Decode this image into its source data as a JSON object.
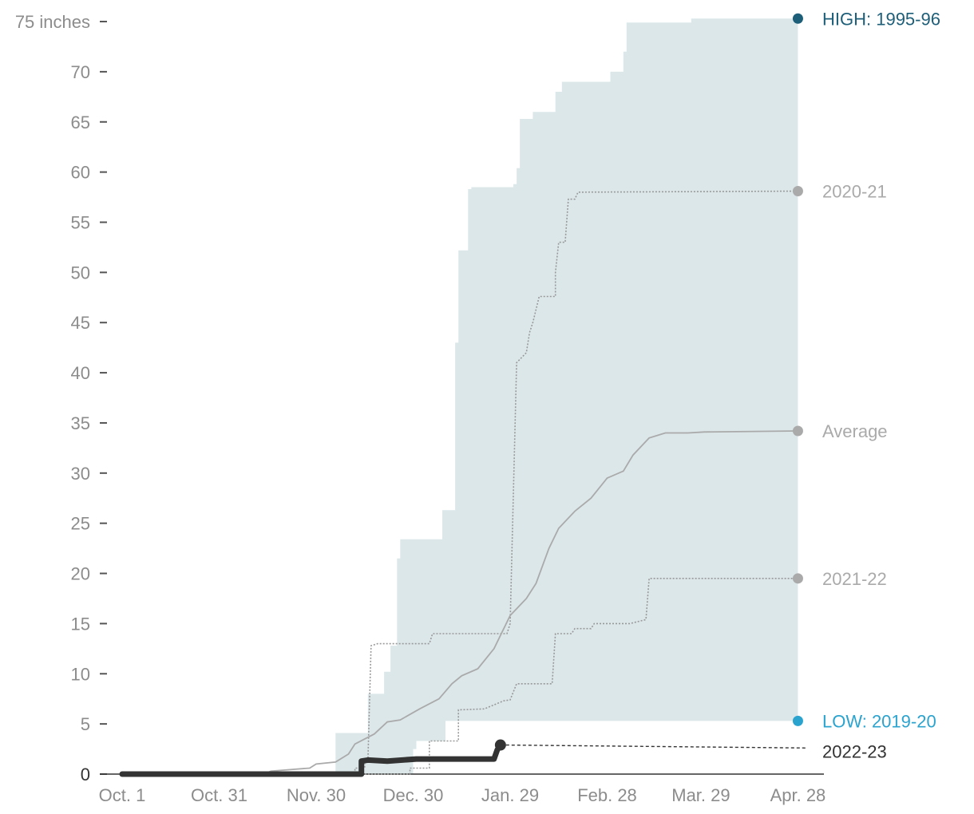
{
  "chart_data": {
    "type": "area",
    "y_unit_label": "75 inches",
    "ylim": [
      0,
      75
    ],
    "yticks": [
      0,
      5,
      10,
      15,
      20,
      25,
      30,
      35,
      40,
      45,
      50,
      55,
      60,
      65,
      70,
      75
    ],
    "x_domain_days": [
      0,
      212
    ],
    "xticks": [
      {
        "day": 0,
        "label": "Oct. 1"
      },
      {
        "day": 30,
        "label": "Oct. 31"
      },
      {
        "day": 60,
        "label": "Nov. 30"
      },
      {
        "day": 90,
        "label": "Dec. 30"
      },
      {
        "day": 120,
        "label": "Jan. 29"
      },
      {
        "day": 150,
        "label": "Feb. 28"
      },
      {
        "day": 179,
        "label": "Mar. 29"
      },
      {
        "day": 209,
        "label": "Apr. 28"
      }
    ],
    "colors": {
      "range": "#dce7ea",
      "high": "#1d5e79",
      "low": "#2ba3cf",
      "gray": "#aaaaaa",
      "current": "#333333"
    },
    "range": {
      "upper": [
        [
          58,
          0
        ],
        [
          66,
          0
        ],
        [
          66,
          4.1
        ],
        [
          76,
          4.1
        ],
        [
          76,
          8
        ],
        [
          81,
          8
        ],
        [
          81,
          10.2
        ],
        [
          83,
          10.2
        ],
        [
          83,
          12.8
        ],
        [
          85,
          12.8
        ],
        [
          85,
          21.5
        ],
        [
          86,
          21.5
        ],
        [
          86,
          23.4
        ],
        [
          99,
          23.4
        ],
        [
          99,
          26.3
        ],
        [
          103,
          26.3
        ],
        [
          103,
          43
        ],
        [
          104,
          43
        ],
        [
          104,
          52.2
        ],
        [
          107,
          52.2
        ],
        [
          107,
          58.3
        ],
        [
          108,
          58.3
        ],
        [
          108,
          58.5
        ],
        [
          121,
          58.5
        ],
        [
          121,
          58.8
        ],
        [
          122,
          58.8
        ],
        [
          122,
          60.4
        ],
        [
          123,
          60.4
        ],
        [
          123,
          65.3
        ],
        [
          127,
          65.3
        ],
        [
          127,
          66
        ],
        [
          134,
          66
        ],
        [
          134,
          68
        ],
        [
          136,
          68
        ],
        [
          136,
          69
        ],
        [
          151,
          69
        ],
        [
          151,
          70
        ],
        [
          155,
          70
        ],
        [
          155,
          72
        ],
        [
          156,
          72
        ],
        [
          156,
          74.9
        ],
        [
          176,
          74.9
        ],
        [
          176,
          75.3
        ],
        [
          209,
          75.3
        ]
      ],
      "lower": [
        [
          58,
          0
        ],
        [
          90,
          0
        ],
        [
          90,
          2.5
        ],
        [
          91,
          2.5
        ],
        [
          91,
          3.3
        ],
        [
          100,
          3.3
        ],
        [
          100,
          5.3
        ],
        [
          209,
          5.3
        ]
      ]
    },
    "series": [
      {
        "name": "HIGH: 1995-96",
        "end_value": 75.3
      },
      {
        "name": "2020-21",
        "style": "dotted",
        "end_value": 58.1,
        "points": [
          [
            0,
            0
          ],
          [
            72,
            0
          ],
          [
            72,
            0.6
          ],
          [
            75,
            0.6
          ],
          [
            75,
            1.2
          ],
          [
            76,
            1.2
          ],
          [
            77,
            12.8
          ],
          [
            79,
            13
          ],
          [
            95,
            13
          ],
          [
            96,
            14
          ],
          [
            119,
            14
          ],
          [
            120,
            15
          ],
          [
            122,
            41
          ],
          [
            125,
            42
          ],
          [
            126,
            44
          ],
          [
            127,
            45
          ],
          [
            129,
            47.6
          ],
          [
            134,
            47.6
          ],
          [
            134,
            50
          ],
          [
            135,
            53
          ],
          [
            137,
            53
          ],
          [
            138,
            57.3
          ],
          [
            140,
            57.3
          ],
          [
            141,
            58
          ],
          [
            209,
            58.1
          ]
        ]
      },
      {
        "name": "Average",
        "style": "solid",
        "end_value": 34.2,
        "points": [
          [
            0,
            0
          ],
          [
            44,
            0
          ],
          [
            46,
            0.3
          ],
          [
            50,
            0.4
          ],
          [
            58,
            0.6
          ],
          [
            60,
            1
          ],
          [
            66,
            1.2
          ],
          [
            70,
            2
          ],
          [
            72,
            3
          ],
          [
            78,
            4
          ],
          [
            82,
            5.2
          ],
          [
            86,
            5.4
          ],
          [
            92,
            6.5
          ],
          [
            98,
            7.5
          ],
          [
            102,
            9
          ],
          [
            105,
            9.8
          ],
          [
            110,
            10.5
          ],
          [
            115,
            12.5
          ],
          [
            120,
            15.8
          ],
          [
            125,
            17.5
          ],
          [
            128,
            19
          ],
          [
            132,
            22.5
          ],
          [
            135,
            24.5
          ],
          [
            140,
            26.2
          ],
          [
            145,
            27.5
          ],
          [
            150,
            29.5
          ],
          [
            155,
            30.2
          ],
          [
            158,
            31.8
          ],
          [
            163,
            33.5
          ],
          [
            168,
            34
          ],
          [
            175,
            34
          ],
          [
            180,
            34.1
          ],
          [
            209,
            34.2
          ]
        ]
      },
      {
        "name": "2021-22",
        "style": "dotted",
        "end_value": 19.5,
        "points": [
          [
            0,
            0
          ],
          [
            89,
            0
          ],
          [
            89,
            0.6
          ],
          [
            95,
            0.6
          ],
          [
            95,
            3.3
          ],
          [
            104,
            3.3
          ],
          [
            104,
            6.4
          ],
          [
            112,
            6.5
          ],
          [
            118,
            7.3
          ],
          [
            120,
            7.4
          ],
          [
            122,
            9
          ],
          [
            133,
            9
          ],
          [
            134,
            14
          ],
          [
            139,
            14
          ],
          [
            140,
            14.5
          ],
          [
            145,
            14.5
          ],
          [
            146,
            15
          ],
          [
            157,
            15
          ],
          [
            162,
            15.4
          ],
          [
            163,
            19.5
          ],
          [
            209,
            19.5
          ]
        ]
      },
      {
        "name": "LOW: 2019-20",
        "end_value": 5.3
      },
      {
        "name": "2022-23",
        "style": "bold",
        "end_value": 2.9,
        "points": [
          [
            0,
            0
          ],
          [
            74,
            0
          ],
          [
            74,
            1.3
          ],
          [
            76,
            1.4
          ],
          [
            82,
            1.3
          ],
          [
            91,
            1.5
          ],
          [
            115,
            1.5
          ],
          [
            116,
            2.4
          ],
          [
            117,
            2.9
          ]
        ]
      },
      {
        "name": "2022-23 (projection)",
        "style": "dashed",
        "points": [
          [
            117,
            2.9
          ],
          [
            212,
            2.6
          ]
        ]
      }
    ],
    "end_labels": [
      {
        "text": "HIGH: 1995-96",
        "color_key": "high",
        "value": 75.3
      },
      {
        "text": "2020-21",
        "color_key": "gray",
        "value": 58.1
      },
      {
        "text": "Average",
        "color_key": "gray",
        "value": 34.2
      },
      {
        "text": "2021-22",
        "color_key": "gray",
        "value": 19.5
      },
      {
        "text": "LOW: 2019-20",
        "color_key": "low",
        "value": 5.3
      },
      {
        "text": "2022-23",
        "color_key": "current",
        "value": 2.6
      }
    ]
  }
}
